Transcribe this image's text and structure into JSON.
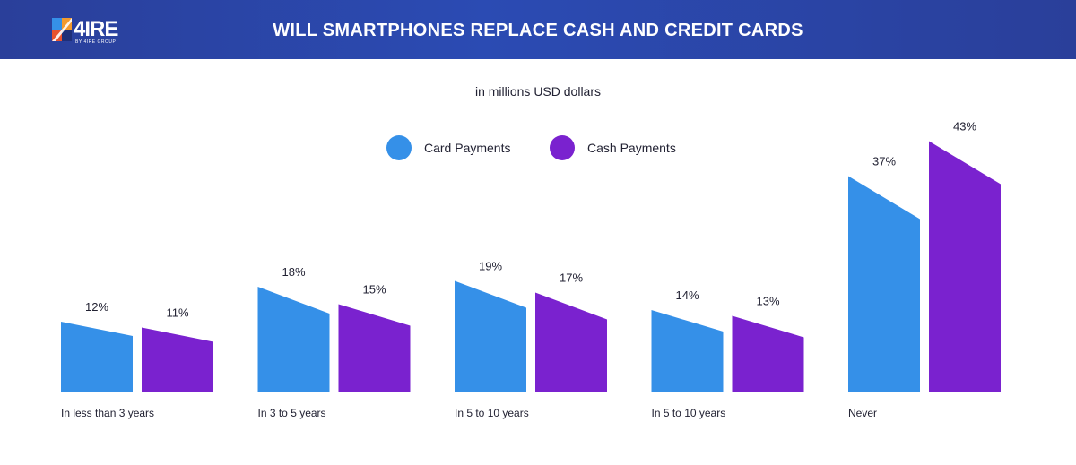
{
  "header": {
    "logo_text": "4IRE",
    "logo_sub": "BY 4IRE GROUP",
    "title": "WILL SMARTPHONES REPLACE CASH AND CREDIT CARDS"
  },
  "chart_data": {
    "type": "bar",
    "subtitle": "in millions USD dollars",
    "categories": [
      "In less than 3 years",
      "In 3 to 5 years",
      "In 5 to 10 years",
      "In 5 to 10 years",
      "Never"
    ],
    "series": [
      {
        "name": "Card Payments",
        "values": [
          12,
          18,
          19,
          14,
          37
        ],
        "labels": [
          "12%",
          "18%",
          "19%",
          "14%",
          "37%"
        ]
      },
      {
        "name": "Cash Payments",
        "values": [
          11,
          15,
          17,
          13,
          43
        ],
        "labels": [
          "11%",
          "15%",
          "17%",
          "13%",
          "43%"
        ]
      }
    ],
    "legend_position": "top-center",
    "grid": false,
    "colors": {
      "card": "#3590e8",
      "cash": "#7a22cf"
    }
  }
}
